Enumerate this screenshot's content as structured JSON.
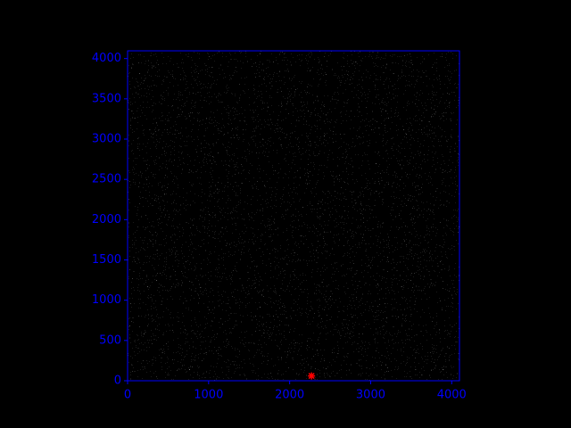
{
  "chart_data": {
    "type": "scatter",
    "xlim": [
      0,
      4096
    ],
    "ylim": [
      0,
      4096
    ],
    "xticks": [
      0,
      1000,
      2000,
      3000,
      4000
    ],
    "yticks": [
      0,
      500,
      1000,
      1500,
      2000,
      2500,
      3000,
      3500,
      4000
    ],
    "series": [
      {
        "x": [
          2270
        ],
        "values": [
          60
        ],
        "color": "#ff0000"
      }
    ],
    "axis_color": "#0000ff",
    "background": "#000000"
  }
}
